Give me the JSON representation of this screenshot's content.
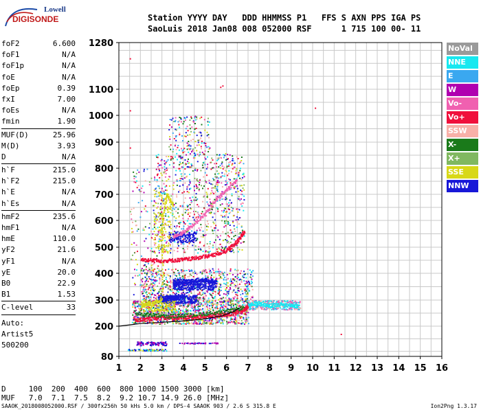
{
  "logo": {
    "line1": "Lowell",
    "line2": "DIGISONDE"
  },
  "header": {
    "line1": "Station YYYY DAY   DDD HHMMSS P1   FFS S AXN PPS IGA PS",
    "line2": "SaoLuis 2018 Jan08 008 052000 RSF      1 715 100 00- 11"
  },
  "params": [
    [
      {
        "label": "foF2",
        "value": "6.600"
      },
      {
        "label": "foF1",
        "value": "N/A"
      },
      {
        "label": "foF1p",
        "value": "N/A"
      },
      {
        "label": "foE",
        "value": "N/A"
      },
      {
        "label": "foEp",
        "value": "0.39"
      },
      {
        "label": "fxI",
        "value": "7.00"
      },
      {
        "label": "foEs",
        "value": "N/A"
      },
      {
        "label": "fmin",
        "value": "1.90"
      }
    ],
    [
      {
        "label": "MUF(D)",
        "value": "25.96"
      },
      {
        "label": "M(D)",
        "value": "3.93"
      },
      {
        "label": "D",
        "value": "N/A"
      }
    ],
    [
      {
        "label": "h`F",
        "value": "215.0"
      },
      {
        "label": "h`F2",
        "value": "215.0"
      },
      {
        "label": "h`E",
        "value": "N/A"
      },
      {
        "label": "h`Es",
        "value": "N/A"
      }
    ],
    [
      {
        "label": "hmF2",
        "value": "235.6"
      },
      {
        "label": "hmF1",
        "value": "N/A"
      },
      {
        "label": "hmE",
        "value": "110.0"
      },
      {
        "label": "yF2",
        "value": "21.6"
      },
      {
        "label": "yF1",
        "value": "N/A"
      },
      {
        "label": "yE",
        "value": "20.0"
      },
      {
        "label": "B0",
        "value": "22.9"
      },
      {
        "label": "B1",
        "value": "1.53"
      }
    ],
    [
      {
        "label": "C-level",
        "value": "33"
      }
    ]
  ],
  "auto": {
    "line1": "Auto:",
    "line2": "Artist5",
    "line3": "500200"
  },
  "legend": [
    {
      "label": "NoVal",
      "color": "#9a9a9a"
    },
    {
      "label": "NNE",
      "color": "#18e8f0"
    },
    {
      "label": "E",
      "color": "#3aa8f0"
    },
    {
      "label": "W",
      "color": "#b000b0"
    },
    {
      "label": "Vo-",
      "color": "#f060b0"
    },
    {
      "label": "Vo+",
      "color": "#f0103c"
    },
    {
      "label": "SSW",
      "color": "#f8b0a8"
    },
    {
      "label": "X-",
      "color": "#1a7a1a"
    },
    {
      "label": "X+",
      "color": "#80b860"
    },
    {
      "label": "SSE",
      "color": "#d8d818"
    },
    {
      "label": "NNW",
      "color": "#1818d8"
    }
  ],
  "bottom": {
    "line1": "D     100  200  400  600  800 1000 1500 3000 [km]",
    "line2": "MUF   7.0  7.1  7.5  8.2  9.2 10.7 14.9 26.0 [MHz]"
  },
  "footer": "SAAOK_2018008052000.RSF / 300fx256h 50 kHs 5.0 km / DPS-4 SAAOK 903 / 2.6 S 315.8 E",
  "version": "Ion2Png 1.3.17",
  "chart_data": {
    "type": "scatter",
    "x_ticks": [
      1,
      2,
      3,
      4,
      5,
      6,
      7,
      8,
      9,
      10,
      11,
      12,
      13,
      14,
      15,
      16
    ],
    "y_ticks": [
      80,
      200,
      300,
      400,
      500,
      600,
      700,
      800,
      900,
      1000,
      1100,
      1280
    ],
    "xlim": [
      1,
      16
    ],
    "ylim": [
      80,
      1280
    ],
    "grid": true,
    "legend_position": "right",
    "series": [
      {
        "name": "Vo+",
        "points": [
          [
            1.7,
            225
          ],
          [
            2.2,
            228
          ],
          [
            2.7,
            232
          ],
          [
            3.2,
            233
          ],
          [
            3.7,
            234
          ],
          [
            4.2,
            236
          ],
          [
            4.7,
            238
          ],
          [
            5.2,
            240
          ],
          [
            5.7,
            245
          ],
          [
            6.2,
            250
          ],
          [
            6.6,
            258
          ],
          [
            6.9,
            270
          ],
          [
            7.0,
            285
          ]
        ]
      },
      {
        "name": "Vo+",
        "points": [
          [
            2.0,
            455
          ],
          [
            2.5,
            452
          ],
          [
            3.0,
            450
          ],
          [
            3.5,
            452
          ],
          [
            4.0,
            455
          ],
          [
            4.5,
            460
          ],
          [
            5.0,
            467
          ],
          [
            5.5,
            475
          ],
          [
            6.0,
            490
          ],
          [
            6.3,
            510
          ],
          [
            6.6,
            535
          ],
          [
            6.8,
            560
          ]
        ]
      },
      {
        "name": "Vo-",
        "points": [
          [
            3.5,
            540
          ],
          [
            4.0,
            560
          ],
          [
            4.5,
            590
          ],
          [
            5.0,
            630
          ],
          [
            5.5,
            680
          ],
          [
            6.0,
            720
          ],
          [
            6.5,
            760
          ]
        ]
      },
      {
        "name": "NNW",
        "points": [
          [
            3.5,
            360
          ],
          [
            4.0,
            370
          ],
          [
            4.5,
            375
          ],
          [
            5.0,
            378
          ],
          [
            5.5,
            370
          ],
          [
            3.0,
            300
          ],
          [
            3.5,
            310
          ],
          [
            4.0,
            320
          ]
        ]
      },
      {
        "name": "NNE",
        "points": [
          [
            7.0,
            285
          ],
          [
            7.5,
            290
          ],
          [
            8.0,
            280
          ],
          [
            8.5,
            285
          ],
          [
            9.0,
            282
          ],
          [
            9.3,
            278
          ]
        ]
      },
      {
        "name": "X-",
        "points": [
          [
            1.8,
            250
          ],
          [
            2.5,
            245
          ],
          [
            3.2,
            240
          ],
          [
            4.0,
            242
          ],
          [
            5.0,
            250
          ],
          [
            6.0,
            258
          ],
          [
            6.8,
            275
          ]
        ]
      },
      {
        "name": "SSE",
        "points": [
          [
            2.0,
            280
          ],
          [
            2.5,
            285
          ],
          [
            3.0,
            310
          ],
          [
            3.0,
            600
          ],
          [
            3.2,
            700
          ],
          [
            3.5,
            660
          ]
        ]
      }
    ]
  }
}
